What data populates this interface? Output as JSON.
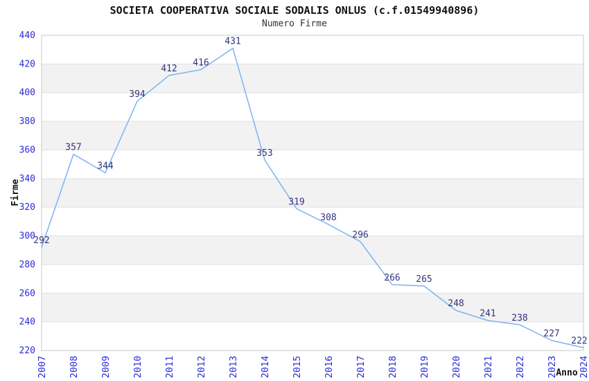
{
  "chart_data": {
    "type": "line",
    "title": "SOCIETA COOPERATIVA SOCIALE SODALIS ONLUS (c.f.01549940896)",
    "subtitle": "Numero Firme",
    "xlabel": "Anno",
    "ylabel": "Firme",
    "categories": [
      "2007",
      "2008",
      "2009",
      "2010",
      "2011",
      "2012",
      "2013",
      "2014",
      "2015",
      "2016",
      "2017",
      "2018",
      "2019",
      "2020",
      "2021",
      "2022",
      "2023",
      "2024"
    ],
    "series": [
      {
        "name": "Numero Firme",
        "values": [
          292,
          357,
          344,
          394,
          412,
          416,
          431,
          353,
          319,
          308,
          296,
          266,
          265,
          248,
          241,
          238,
          227,
          222
        ]
      }
    ],
    "ylim": [
      220,
      440
    ],
    "ytick_step": 20,
    "yticks": [
      220,
      240,
      260,
      280,
      300,
      320,
      340,
      360,
      380,
      400,
      420,
      440
    ],
    "grid": "horizontal-bands-alternating",
    "legend": "none",
    "data_labels": true,
    "colors": {
      "line": "#7cb3ef",
      "tick_label": "#2b2bd6",
      "data_label": "#333380",
      "band_fill": "#f2f2f2",
      "gridline": "#e0e0e0",
      "plot_border": "#c9c9c9",
      "title": "#111111",
      "subtitle": "#333333",
      "axis_title": "#111111",
      "background": "#ffffff"
    }
  }
}
